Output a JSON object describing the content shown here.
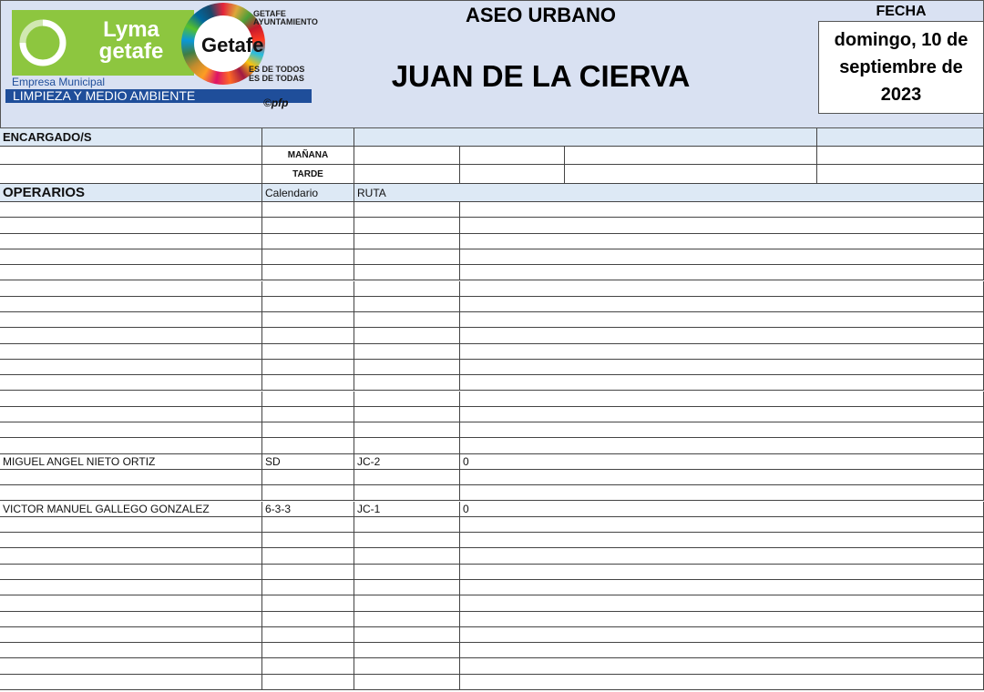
{
  "logo": {
    "brand": "Lyma getafe",
    "company_line1": "Empresa Municipal",
    "company_line2": "LIMPIEZA Y MEDIO AMBIENTE",
    "city_logo": "Getafe",
    "city_council": "GETAFE AYUNTAMIENTO",
    "slogan": "ES DE TODOS ES DE TODAS",
    "copyright": "©pfp"
  },
  "header": {
    "department": "ASEO URBANO",
    "location": "JUAN DE LA CIERVA",
    "date_label": "FECHA",
    "date_value": "domingo, 10 de septiembre de 2023"
  },
  "colors": {
    "header_bg": "#d9e1f2",
    "band_bg": "#dde9f5",
    "logo_green": "#8dc63f",
    "logo_blue": "#1f4e9a"
  },
  "encargados": {
    "label": "ENCARGADO/S",
    "shift_morning": "MAÑANA",
    "shift_afternoon": "TARDE"
  },
  "operarios": {
    "label": "OPERARIOS",
    "col_calendar": "Calendario",
    "col_route": "RUTA",
    "rows": [
      {
        "name": "",
        "calendar": "",
        "route": "",
        "value": ""
      },
      {
        "name": "",
        "calendar": "",
        "route": "",
        "value": ""
      },
      {
        "name": "",
        "calendar": "",
        "route": "",
        "value": ""
      },
      {
        "name": "",
        "calendar": "",
        "route": "",
        "value": ""
      },
      {
        "name": "",
        "calendar": "",
        "route": "",
        "value": ""
      },
      {
        "name": "",
        "calendar": "",
        "route": "",
        "value": ""
      },
      {
        "name": "",
        "calendar": "",
        "route": "",
        "value": ""
      },
      {
        "name": "",
        "calendar": "",
        "route": "",
        "value": ""
      },
      {
        "name": "",
        "calendar": "",
        "route": "",
        "value": ""
      },
      {
        "name": "",
        "calendar": "",
        "route": "",
        "value": ""
      },
      {
        "name": "",
        "calendar": "",
        "route": "",
        "value": ""
      },
      {
        "name": "",
        "calendar": "",
        "route": "",
        "value": ""
      },
      {
        "name": "",
        "calendar": "",
        "route": "",
        "value": ""
      },
      {
        "name": "",
        "calendar": "",
        "route": "",
        "value": ""
      },
      {
        "name": "",
        "calendar": "",
        "route": "",
        "value": ""
      },
      {
        "name": "",
        "calendar": "",
        "route": "",
        "value": ""
      },
      {
        "name": "MIGUEL ANGEL NIETO ORTIZ",
        "calendar": "SD",
        "route": "JC-2",
        "value": "0"
      },
      {
        "name": "",
        "calendar": "",
        "route": "",
        "value": ""
      },
      {
        "name": "",
        "calendar": "",
        "route": "",
        "value": ""
      },
      {
        "name": "VICTOR MANUEL GALLEGO GONZALEZ",
        "calendar": "6-3-3",
        "route": "JC-1",
        "value": "0"
      },
      {
        "name": "",
        "calendar": "",
        "route": "",
        "value": ""
      },
      {
        "name": "",
        "calendar": "",
        "route": "",
        "value": ""
      },
      {
        "name": "",
        "calendar": "",
        "route": "",
        "value": ""
      },
      {
        "name": "",
        "calendar": "",
        "route": "",
        "value": ""
      },
      {
        "name": "",
        "calendar": "",
        "route": "",
        "value": ""
      },
      {
        "name": "",
        "calendar": "",
        "route": "",
        "value": ""
      },
      {
        "name": "",
        "calendar": "",
        "route": "",
        "value": ""
      },
      {
        "name": "",
        "calendar": "",
        "route": "",
        "value": ""
      },
      {
        "name": "",
        "calendar": "",
        "route": "",
        "value": ""
      },
      {
        "name": "",
        "calendar": "",
        "route": "",
        "value": ""
      },
      {
        "name": "",
        "calendar": "",
        "route": "",
        "value": ""
      }
    ]
  }
}
